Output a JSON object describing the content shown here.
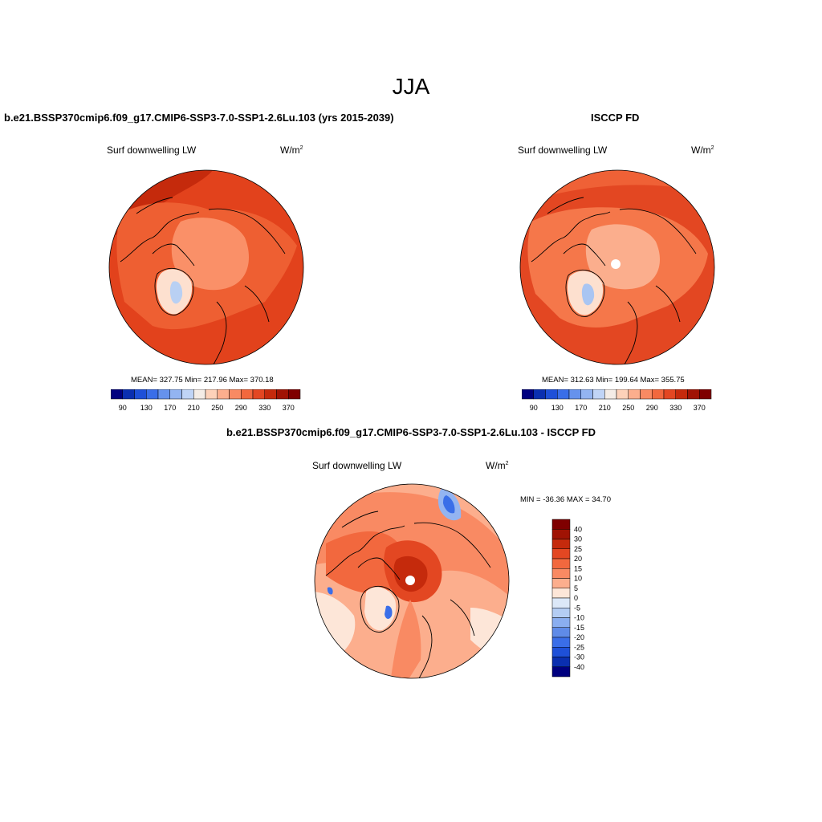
{
  "figure_title": "JJA",
  "panels": [
    {
      "title": "b.e21.BSSP370cmip6.f09_g17.CMIP6-SSP3-7.0-SSP1-2.6Lu.103 (yrs 2015-2039)",
      "variable": "Surf downwelling LW",
      "units": "W/m",
      "units_exp": "2",
      "stats": "MEAN= 327.75  Min= 217.96  Max= 370.18"
    },
    {
      "title": "ISCCP FD",
      "variable": "Surf downwelling LW",
      "units": "W/m",
      "units_exp": "2",
      "stats": "MEAN= 312.63  Min= 199.64  Max= 355.75"
    },
    {
      "title": "b.e21.BSSP370cmip6.f09_g17.CMIP6-SSP3-7.0-SSP1-2.6Lu.103 - ISCCP FD",
      "variable": "Surf downwelling LW",
      "units": "W/m",
      "units_exp": "2",
      "stats": "MIN = -36.36 MAX =  34.70"
    }
  ],
  "colorbar_main": {
    "colors": [
      "#00007f",
      "#0a2fb0",
      "#1e50d8",
      "#3a6ee8",
      "#6692ec",
      "#93b4f1",
      "#c0d4f6",
      "#f4ece6",
      "#fdd1b9",
      "#fcae8d",
      "#f98a63",
      "#f2683e",
      "#e34722",
      "#c52a0c",
      "#a01304",
      "#7f0000"
    ],
    "tick_labels": [
      "90",
      "130",
      "170",
      "210",
      "250",
      "290",
      "330",
      "370"
    ]
  },
  "colorbar_diff": {
    "colors": [
      "#7f0000",
      "#a01304",
      "#c52a0c",
      "#e34722",
      "#f2683e",
      "#f98a63",
      "#fcae8d",
      "#fde6d8",
      "#dce8f8",
      "#b4cdf3",
      "#8aaef0",
      "#5f8be8",
      "#3a6ee8",
      "#1e50d8",
      "#0a2fb0",
      "#00007f"
    ],
    "tick_labels": [
      "40",
      "30",
      "25",
      "20",
      "15",
      "10",
      "5",
      "0",
      "-5",
      "-10",
      "-15",
      "-20",
      "-25",
      "-30",
      "-40"
    ]
  },
  "colors": {
    "ocean_warm": "#e2421c",
    "land_mid": "#f06a3e",
    "arctic": "#fa9068",
    "greenland": "#fde0cf",
    "ice_core": "#b9d0f3",
    "deep_red": "#c52a0c"
  }
}
